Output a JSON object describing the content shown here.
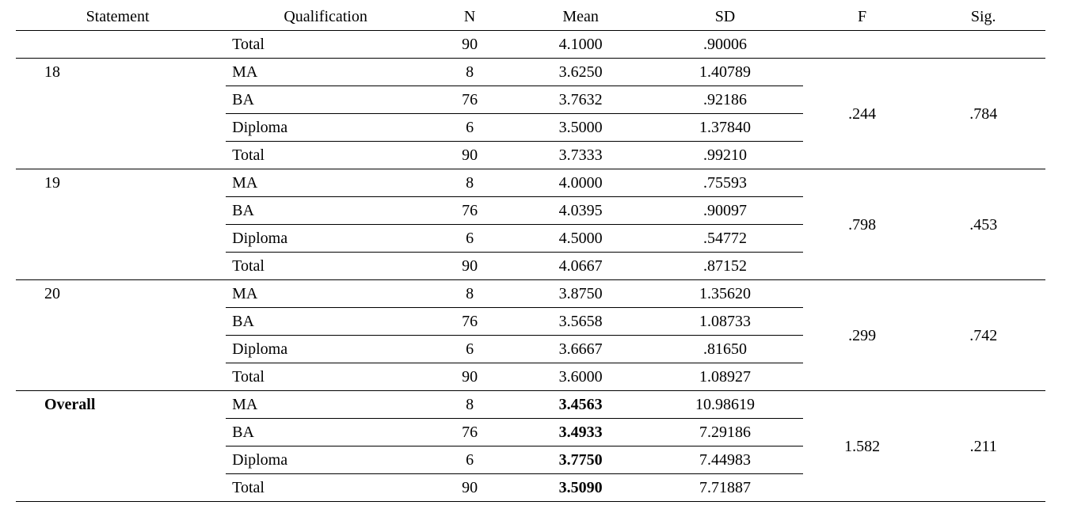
{
  "columns": {
    "statement": "Statement",
    "qualification": "Qualification",
    "n": "N",
    "mean": "Mean",
    "sd": "SD",
    "f": "F",
    "sig": "Sig."
  },
  "groups": [
    {
      "statement": "",
      "rows": [
        {
          "qual": "Total",
          "n": "90",
          "mean": "4.1000",
          "sd": ".90006",
          "mean_bold": false
        }
      ],
      "f": "",
      "sig": ""
    },
    {
      "statement": "18",
      "rows": [
        {
          "qual": "MA",
          "n": "8",
          "mean": "3.6250",
          "sd": "1.40789",
          "mean_bold": false
        },
        {
          "qual": "BA",
          "n": "76",
          "mean": "3.7632",
          "sd": ".92186",
          "mean_bold": false
        },
        {
          "qual": "Diploma",
          "n": "6",
          "mean": "3.5000",
          "sd": "1.37840",
          "mean_bold": false
        },
        {
          "qual": "Total",
          "n": "90",
          "mean": "3.7333",
          "sd": ".99210",
          "mean_bold": false
        }
      ],
      "f": ".244",
      "sig": ".784"
    },
    {
      "statement": "19",
      "rows": [
        {
          "qual": "MA",
          "n": "8",
          "mean": "4.0000",
          "sd": ".75593",
          "mean_bold": false
        },
        {
          "qual": "BA",
          "n": "76",
          "mean": "4.0395",
          "sd": ".90097",
          "mean_bold": false
        },
        {
          "qual": "Diploma",
          "n": "6",
          "mean": "4.5000",
          "sd": ".54772",
          "mean_bold": false
        },
        {
          "qual": "Total",
          "n": "90",
          "mean": "4.0667",
          "sd": ".87152",
          "mean_bold": false
        }
      ],
      "f": ".798",
      "sig": ".453"
    },
    {
      "statement": "20",
      "rows": [
        {
          "qual": "MA",
          "n": "8",
          "mean": "3.8750",
          "sd": "1.35620",
          "mean_bold": false
        },
        {
          "qual": "BA",
          "n": "76",
          "mean": "3.5658",
          "sd": "1.08733",
          "mean_bold": false
        },
        {
          "qual": "Diploma",
          "n": "6",
          "mean": "3.6667",
          "sd": ".81650",
          "mean_bold": false
        },
        {
          "qual": "Total",
          "n": "90",
          "mean": "3.6000",
          "sd": "1.08927",
          "mean_bold": false
        }
      ],
      "f": ".299",
      "sig": ".742"
    },
    {
      "statement": "Overall",
      "statement_bold": true,
      "rows": [
        {
          "qual": "MA",
          "n": "8",
          "mean": "3.4563",
          "sd": "10.98619",
          "mean_bold": true
        },
        {
          "qual": "BA",
          "n": "76",
          "mean": "3.4933",
          "sd": "7.29186",
          "mean_bold": true
        },
        {
          "qual": "Diploma",
          "n": "6",
          "mean": "3.7750",
          "sd": "7.44983",
          "mean_bold": true
        },
        {
          "qual": "Total",
          "n": "90",
          "mean": "3.5090",
          "sd": "7.71887",
          "mean_bold": true
        }
      ],
      "f": "1.582",
      "sig": ".211"
    }
  ]
}
